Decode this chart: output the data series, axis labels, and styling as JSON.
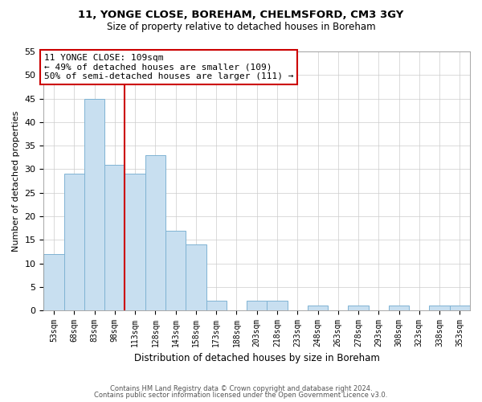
{
  "title1": "11, YONGE CLOSE, BOREHAM, CHELMSFORD, CM3 3GY",
  "title2": "Size of property relative to detached houses in Boreham",
  "xlabel": "Distribution of detached houses by size in Boreham",
  "ylabel": "Number of detached properties",
  "bin_labels": [
    "53sqm",
    "68sqm",
    "83sqm",
    "98sqm",
    "113sqm",
    "128sqm",
    "143sqm",
    "158sqm",
    "173sqm",
    "188sqm",
    "203sqm",
    "218sqm",
    "233sqm",
    "248sqm",
    "263sqm",
    "278sqm",
    "293sqm",
    "308sqm",
    "323sqm",
    "338sqm",
    "353sqm"
  ],
  "bar_values": [
    12,
    29,
    45,
    31,
    29,
    33,
    17,
    14,
    2,
    0,
    2,
    2,
    0,
    1,
    0,
    1,
    0,
    1,
    0,
    1,
    1
  ],
  "bar_color": "#c8dff0",
  "bar_edge_color": "#7fb3d3",
  "annotation_title": "11 YONGE CLOSE: 109sqm",
  "annotation_line1": "← 49% of detached houses are smaller (109)",
  "annotation_line2": "50% of semi-detached houses are larger (111) →",
  "annotation_box_color": "#ffffff",
  "annotation_box_edge": "#cc0000",
  "vline_color": "#cc0000",
  "ylim": [
    0,
    55
  ],
  "yticks": [
    0,
    5,
    10,
    15,
    20,
    25,
    30,
    35,
    40,
    45,
    50,
    55
  ],
  "footer1": "Contains HM Land Registry data © Crown copyright and database right 2024.",
  "footer2": "Contains public sector information licensed under the Open Government Licence v3.0."
}
